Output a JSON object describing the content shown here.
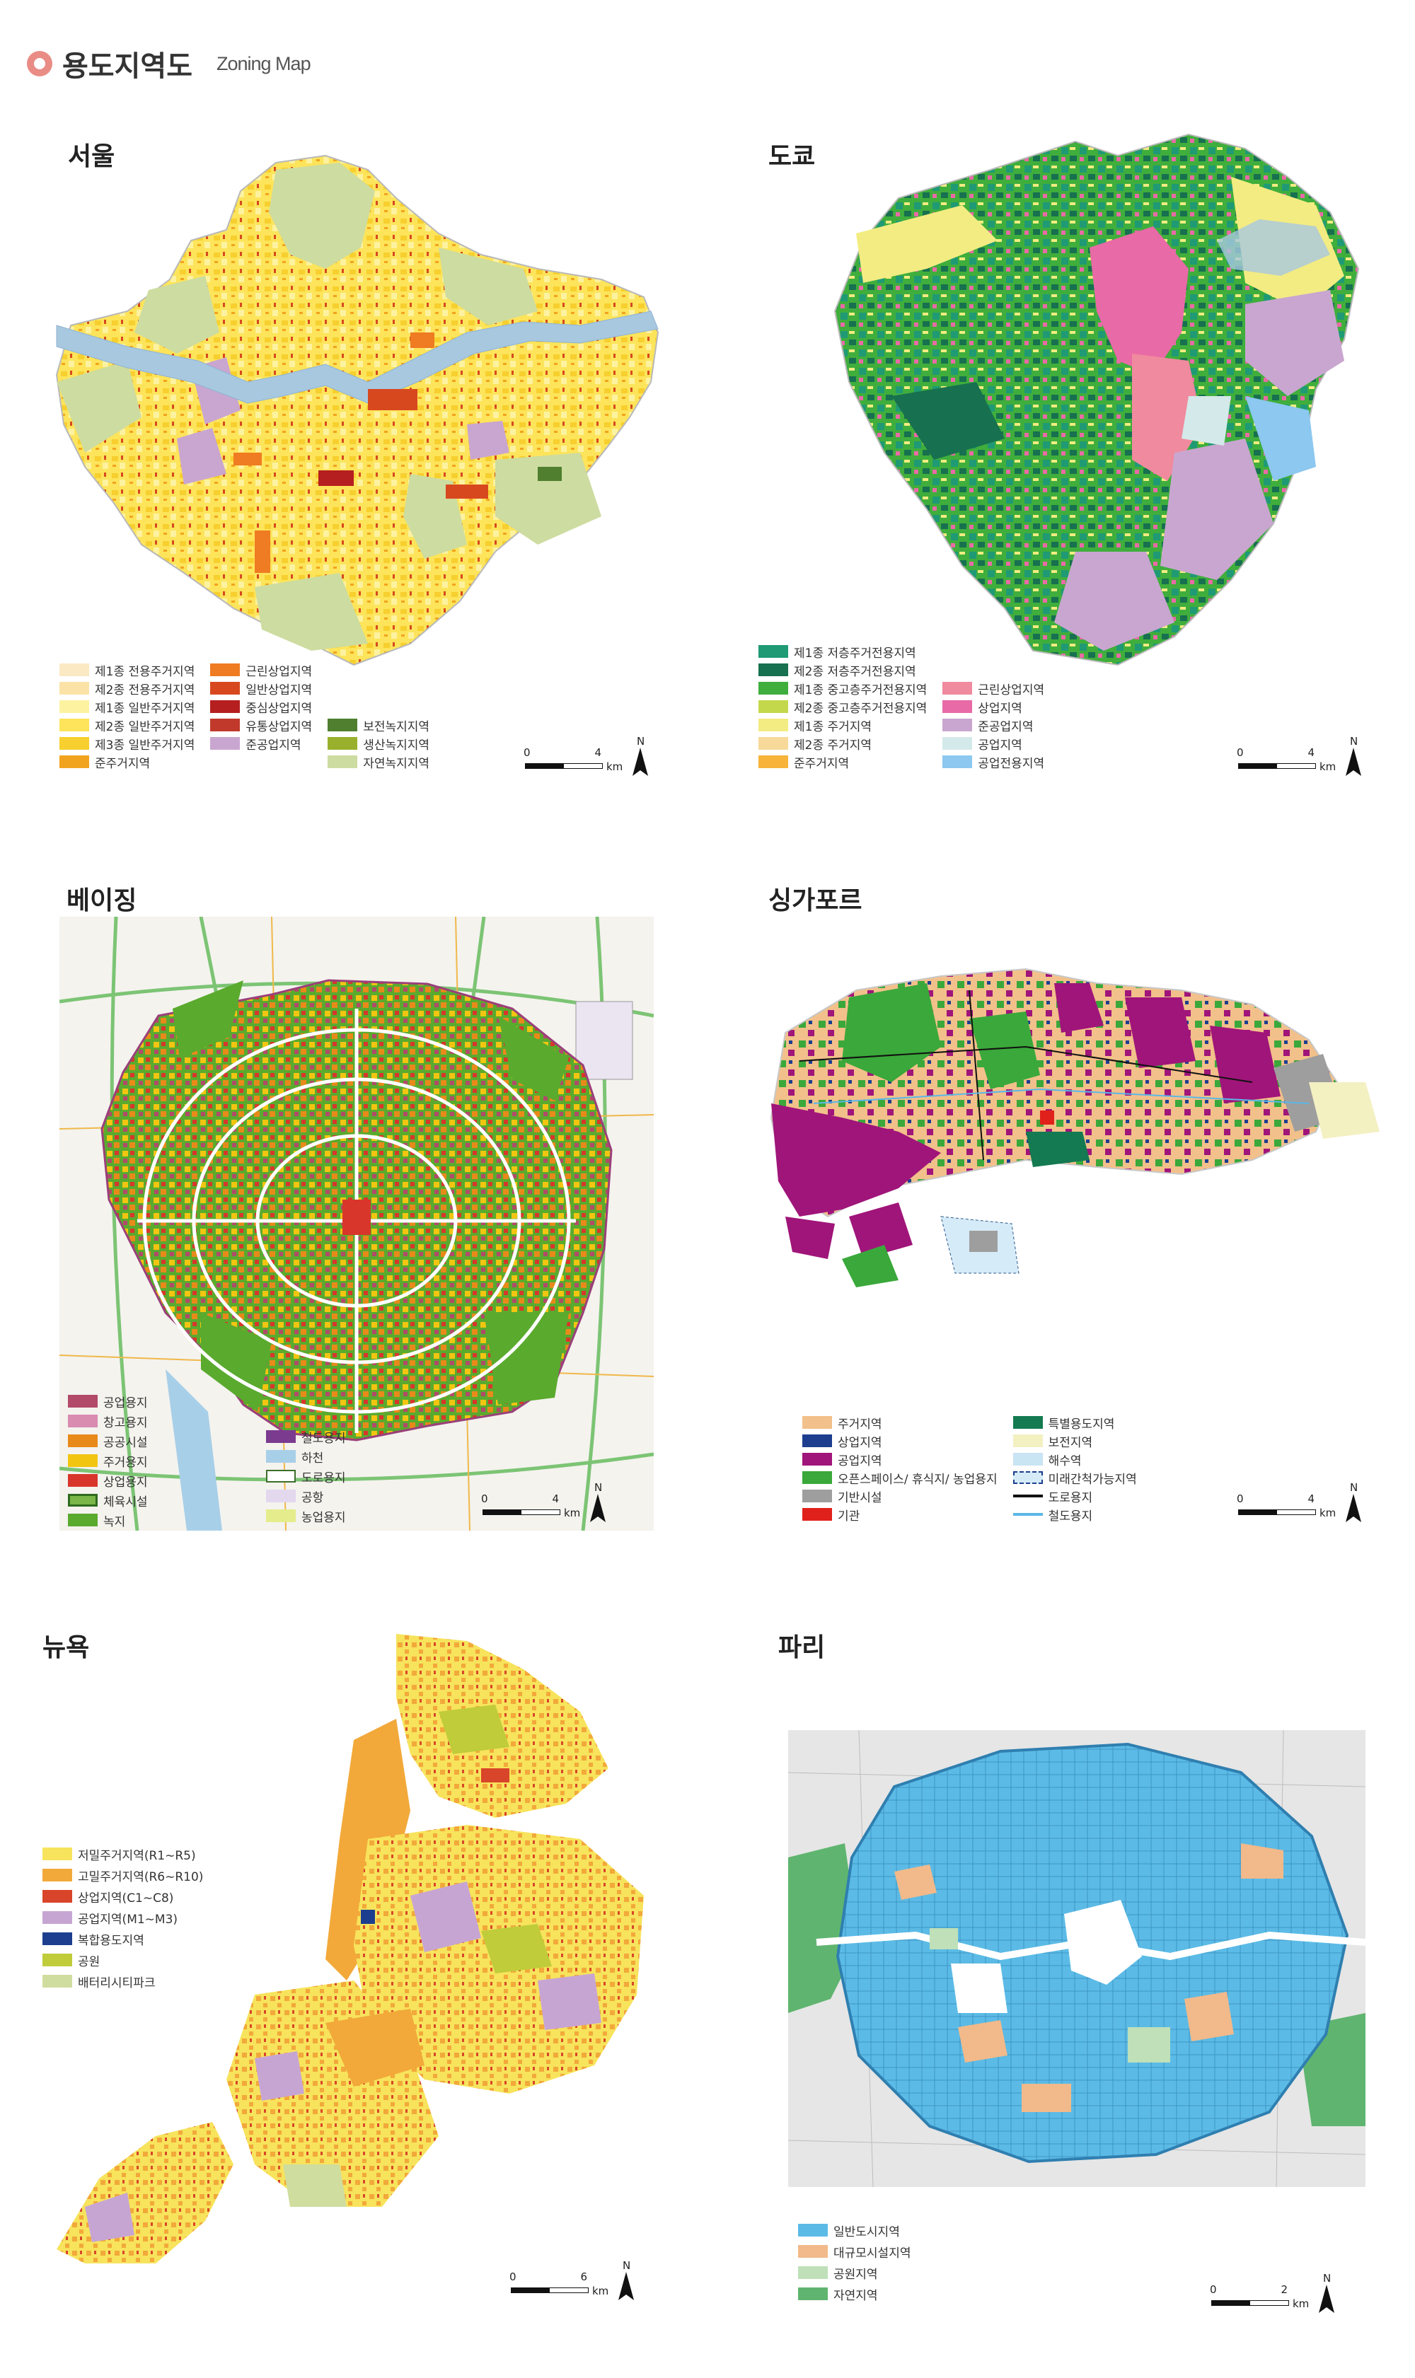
{
  "header": {
    "title": "용도지역도",
    "subtitle": "Zoning Map"
  },
  "panels": {
    "seoul": {
      "title": "서울",
      "legend": [
        {
          "label": "제1종 전용주거지역",
          "color": "#fbe9c4"
        },
        {
          "label": "제2종 전용주거지역",
          "color": "#fbe3a8"
        },
        {
          "label": "제1종 일반주거지역",
          "color": "#fdf2a0"
        },
        {
          "label": "제2종 일반주거지역",
          "color": "#fde45a"
        },
        {
          "label": "제3종 일반주거지역",
          "color": "#f7cf2e"
        },
        {
          "label": "준주거지역",
          "color": "#f2a31e"
        },
        {
          "label": "근린상업지역",
          "color": "#ef7b22"
        },
        {
          "label": "일반상업지역",
          "color": "#d8481f"
        },
        {
          "label": "중심상업지역",
          "color": "#b51f1f"
        },
        {
          "label": "유통상업지역",
          "color": "#c0392b"
        },
        {
          "label": "준공업지역",
          "color": "#c9a6d0"
        },
        {
          "label": "보전녹지지역",
          "color": "#4f7f2f"
        },
        {
          "label": "생산녹지지역",
          "color": "#98b02c"
        },
        {
          "label": "자연녹지지역",
          "color": "#cddca0"
        }
      ],
      "scale": {
        "start": "0",
        "end": "4",
        "unit": "km",
        "north": "N"
      }
    },
    "tokyo": {
      "title": "도쿄",
      "legend": [
        {
          "label": "제1종 저층주거전용지역",
          "color": "#1f9a75"
        },
        {
          "label": "제2종 저층주거전용지역",
          "color": "#17704f"
        },
        {
          "label": "제1종 중고층주거전용지역",
          "color": "#3fae3c"
        },
        {
          "label": "제2종 중고층주거전용지역",
          "color": "#c4d84b"
        },
        {
          "label": "제1종 주거지역",
          "color": "#f3ec82"
        },
        {
          "label": "제2종 주거지역",
          "color": "#f7d99a"
        },
        {
          "label": "준주거지역",
          "color": "#f7b33a"
        },
        {
          "label": "근린상업지역",
          "color": "#f08a9e"
        },
        {
          "label": "상업지역",
          "color": "#e86aa6"
        },
        {
          "label": "준공업지역",
          "color": "#c9a6d0"
        },
        {
          "label": "공업지역",
          "color": "#d4e9ea"
        },
        {
          "label": "공업전용지역",
          "color": "#8cc8ef"
        }
      ],
      "scale": {
        "start": "0",
        "end": "4",
        "unit": "km",
        "north": "N"
      }
    },
    "beijing": {
      "title": "베이징",
      "legend": [
        {
          "label": "공업용지",
          "color": "#b24a6a"
        },
        {
          "label": "창고용지",
          "color": "#d98bb0"
        },
        {
          "label": "공공시설",
          "color": "#e88a1a"
        },
        {
          "label": "주거용지",
          "color": "#f2c511"
        },
        {
          "label": "상업용지",
          "color": "#d9362b"
        },
        {
          "label": "체육시설",
          "color": "#7ab648"
        },
        {
          "label": "녹지",
          "color": "#5aaa2e"
        },
        {
          "label": "철도용지",
          "color": "#7b3b8f"
        },
        {
          "label": "하천",
          "color": "#a8cfe8"
        },
        {
          "label": "도로용지",
          "color": "#ffffff"
        },
        {
          "label": "공항",
          "color": "#e3d8ee"
        },
        {
          "label": "농업용지",
          "color": "#e5ec8c"
        }
      ],
      "scale": {
        "start": "0",
        "end": "4",
        "unit": "km",
        "north": "N"
      }
    },
    "singapore": {
      "title": "싱가포르",
      "legend": [
        {
          "label": "주거지역",
          "color": "#f2c08a"
        },
        {
          "label": "상업지역",
          "color": "#1d3e8f"
        },
        {
          "label": "공업지역",
          "color": "#a0157a"
        },
        {
          "label": "오픈스페이스/ 휴식지/ 농업용지",
          "color": "#3aa83a"
        },
        {
          "label": "기반시설",
          "color": "#9e9e9e"
        },
        {
          "label": "기관",
          "color": "#e0211b"
        },
        {
          "label": "특별용도지역",
          "color": "#137a52"
        },
        {
          "label": "보전지역",
          "color": "#f3f0c2"
        },
        {
          "label": "해수역",
          "color": "#c9e4f3"
        },
        {
          "label": "미래간척가능지역",
          "color": "#d6ebf8"
        },
        {
          "label": "도로용지",
          "color": "#111111"
        },
        {
          "label": "철도용지",
          "color": "#5bb7e8"
        }
      ],
      "scale": {
        "start": "0",
        "end": "4",
        "unit": "km",
        "north": "N"
      }
    },
    "newyork": {
      "title": "뉴욕",
      "legend": [
        {
          "label": "저밀주거지역(R1∼R5)",
          "color": "#f7e35c"
        },
        {
          "label": "고밀주거지역(R6∼R10)",
          "color": "#f2a93a"
        },
        {
          "label": "상업지역(C1∼C8)",
          "color": "#d9452a"
        },
        {
          "label": "공업지역(M1∼M3)",
          "color": "#c7a5d3"
        },
        {
          "label": "복합용도지역",
          "color": "#1d3e8f"
        },
        {
          "label": "공원",
          "color": "#c0cc3a"
        },
        {
          "label": "배터리시티파크",
          "color": "#cfdd9e"
        }
      ],
      "scale": {
        "start": "0",
        "end": "6",
        "unit": "km",
        "north": "N"
      }
    },
    "paris": {
      "title": "파리",
      "legend": [
        {
          "label": "일반도시지역",
          "color": "#5bbbe6"
        },
        {
          "label": "대규모시설지역",
          "color": "#f2b98a"
        },
        {
          "label": "공원지역",
          "color": "#bfe0b8"
        },
        {
          "label": "자연지역",
          "color": "#5fb56f"
        }
      ],
      "scale": {
        "start": "0",
        "end": "2",
        "unit": "km",
        "north": "N"
      }
    }
  }
}
